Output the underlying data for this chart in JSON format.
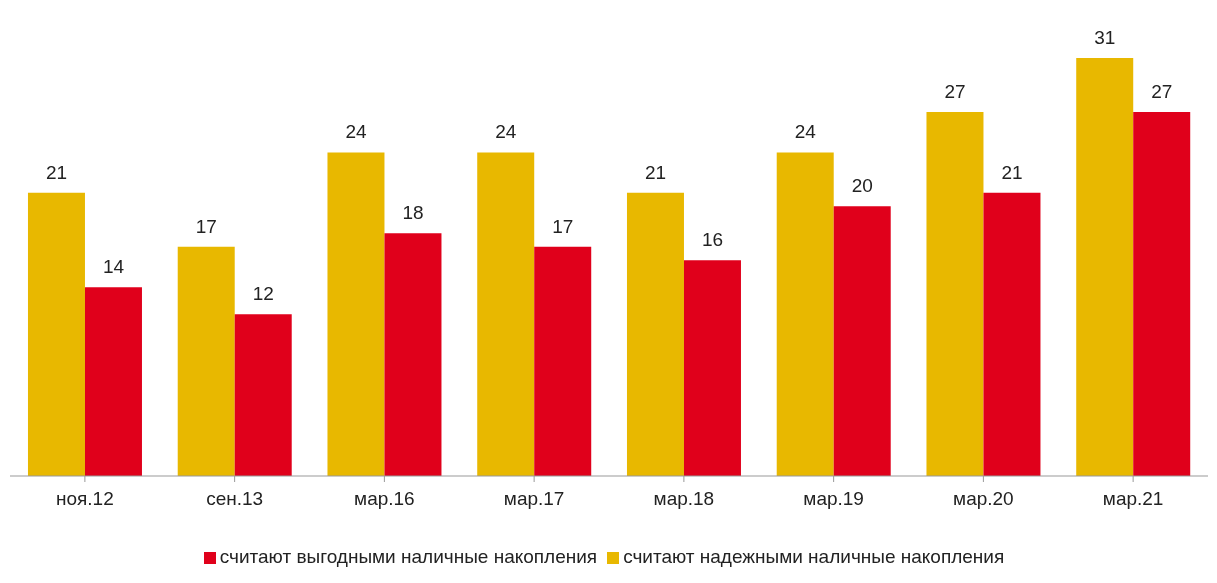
{
  "chart_data": {
    "type": "bar",
    "categories": [
      "ноя.12",
      "сен.13",
      "мар.16",
      "мар.17",
      "мар.18",
      "мар.19",
      "мар.20",
      "мар.21"
    ],
    "series": [
      {
        "name": "считают надежными наличные накопления",
        "color": "#e8b800",
        "values": [
          21,
          17,
          24,
          24,
          21,
          24,
          27,
          31
        ]
      },
      {
        "name": "считают выгодными наличные накопления",
        "color": "#e0001b",
        "values": [
          14,
          12,
          18,
          17,
          16,
          20,
          21,
          27
        ]
      }
    ],
    "data_labels": true,
    "legend": "bottom",
    "grid": false,
    "tick_labels": "x"
  }
}
